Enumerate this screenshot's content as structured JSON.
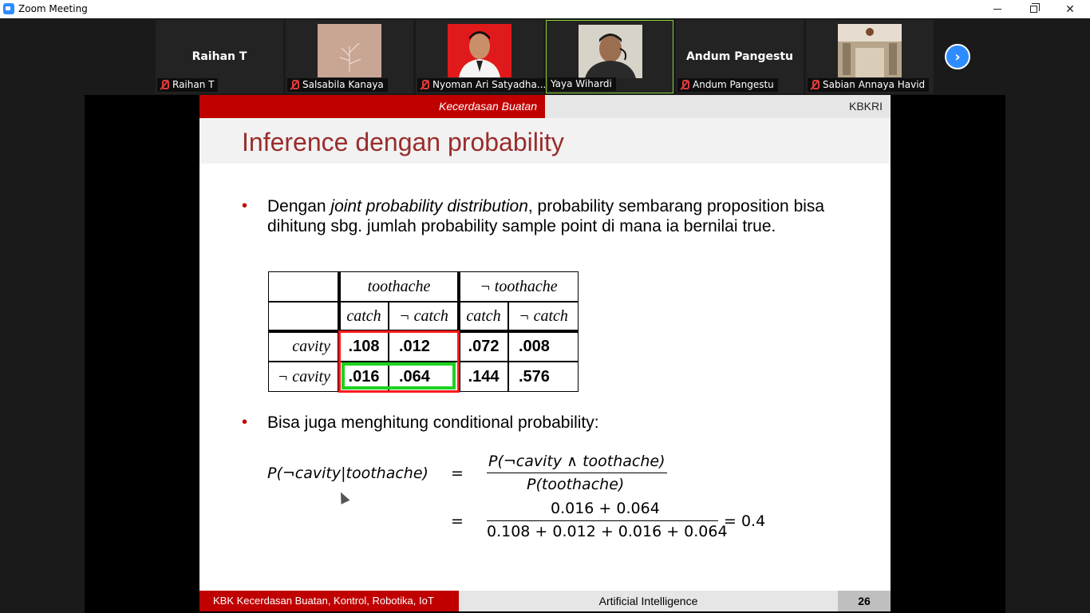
{
  "window": {
    "title": "Zoom Meeting",
    "icon": "zoom-icon"
  },
  "participants": [
    {
      "big_name": "Raihan T",
      "label": "Raihan T",
      "has_video": false,
      "muted": true,
      "active": false
    },
    {
      "big_name": "",
      "label": "Salsabila Kanaya",
      "has_video": true,
      "muted": true,
      "active": false,
      "photo_color": "#c9a594"
    },
    {
      "big_name": "",
      "label": "Nyoman Ari Satyadha...",
      "has_video": true,
      "muted": true,
      "active": false,
      "photo_color": "#e01a1a"
    },
    {
      "big_name": "",
      "label": "Yaya Wihardi",
      "has_video": true,
      "muted": false,
      "active": true,
      "photo_color": "#d8d3c8"
    },
    {
      "big_name": "Andum Pangestu",
      "label": "Andum Pangestu",
      "has_video": false,
      "muted": true,
      "active": false
    },
    {
      "big_name": "",
      "label": "Sabian Annaya Havid",
      "has_video": true,
      "muted": true,
      "active": false,
      "photo_color": "#b7a58b"
    }
  ],
  "slide": {
    "header_left": "Kecerdasan Buatan",
    "header_right": "KBKRI",
    "title": "Inference dengan probability",
    "bullet1_pre": "Dengan ",
    "bullet1_italic": "joint probability distribution",
    "bullet1_post": ", probability sembarang proposition bisa dihitung sbg. jumlah probability sample point di mana ia bernilai true.",
    "bullet2": "Bisa juga menghitung conditional probability:",
    "table": {
      "h_toothache": "toothache",
      "h_not_toothache": "¬ toothache",
      "catch": "catch",
      "not_catch": "¬ catch",
      "row_cavity": "cavity",
      "row_not_cavity": "¬ cavity",
      "values": [
        [
          ".108",
          ".012",
          ".072",
          ".008"
        ],
        [
          ".016",
          ".064",
          ".144",
          ".576"
        ]
      ]
    },
    "formula": {
      "lhs": "P(¬cavity|toothache)",
      "eq": "=",
      "num1": "P(¬cavity ∧ toothache)",
      "den1": "P(toothache)",
      "num2": "0.016 + 0.064",
      "den2": "0.108 + 0.012 + 0.016 + 0.064",
      "result": "= 0.4"
    },
    "footer_left": "KBK Kecerdasan Buatan, Kontrol, Robotika, IoT",
    "footer_center": "Artificial Intelligence",
    "page_number": "26"
  },
  "colors": {
    "accent_red": "#c00000",
    "title_red": "#9b2c2c",
    "highlight_red": "#ff1a1a",
    "highlight_green": "#1fd21f",
    "zoom_blue": "#2d8cff"
  }
}
